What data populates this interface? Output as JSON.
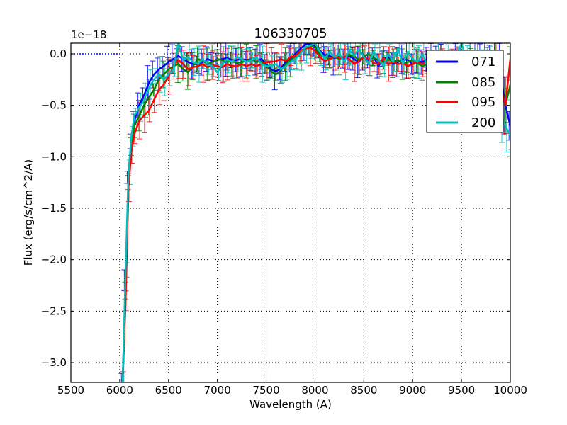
{
  "chart_data": {
    "type": "line",
    "title": "106330705",
    "xlabel": "Wavelength (A)",
    "ylabel": "Flux (erg/s/cm^2/A)",
    "y_offset_label": "1e−18",
    "xlim": [
      5500,
      10000
    ],
    "ylim": [
      -3.2,
      0.1
    ],
    "grid": true,
    "legend_position": "upper right",
    "x_ticks": [
      "5500",
      "6000",
      "6500",
      "7000",
      "7500",
      "8000",
      "8500",
      "9000",
      "9500",
      "10000"
    ],
    "y_ticks": [
      "0.0",
      "−0.5",
      "−1.0",
      "−1.5",
      "−2.0",
      "−2.5",
      "−3.0"
    ],
    "y_tick_values": [
      0.0,
      -0.5,
      -1.0,
      -1.5,
      -2.0,
      -2.5,
      -3.0
    ],
    "x": [
      6030,
      6060,
      6090,
      6120,
      6150,
      6200,
      6250,
      6300,
      6350,
      6400,
      6450,
      6500,
      6550,
      6600,
      6650,
      6700,
      6750,
      6800,
      6850,
      6900,
      6950,
      7000,
      7050,
      7100,
      7150,
      7200,
      7250,
      7300,
      7350,
      7400,
      7450,
      7500,
      7550,
      7600,
      7650,
      7700,
      7750,
      7800,
      7850,
      7900,
      7950,
      8000,
      8050,
      8100,
      8150,
      8200,
      8250,
      8300,
      8350,
      8400,
      8450,
      8500,
      8550,
      8600,
      8650,
      8700,
      8750,
      8800,
      8850,
      8900,
      8950,
      9000,
      9050,
      9100,
      9150,
      9200,
      9250,
      9300,
      9350,
      9400,
      9450,
      9500,
      9550,
      9600,
      9650,
      9700,
      9750,
      9800,
      9850,
      9900,
      9950,
      10000
    ],
    "series": [
      {
        "name": "071",
        "color": "#0000ff",
        "values": [
          -3.2,
          -2.2,
          -1.2,
          -0.85,
          -0.65,
          -0.5,
          -0.4,
          -0.28,
          -0.2,
          -0.15,
          -0.12,
          -0.08,
          -0.05,
          -0.02,
          -0.05,
          -0.08,
          -0.1,
          -0.1,
          -0.08,
          -0.05,
          -0.07,
          -0.06,
          -0.05,
          -0.04,
          -0.06,
          -0.06,
          -0.05,
          -0.06,
          -0.05,
          -0.08,
          -0.05,
          -0.1,
          -0.15,
          -0.17,
          -0.14,
          -0.08,
          -0.05,
          0.0,
          0.05,
          0.09,
          0.1,
          0.08,
          0.03,
          -0.01,
          -0.02,
          -0.04,
          -0.03,
          -0.05,
          -0.02,
          -0.05,
          -0.08,
          -0.02,
          -0.06,
          -0.03,
          -0.12,
          -0.05,
          -0.03,
          -0.1,
          -0.08,
          -0.05,
          -0.06,
          -0.1,
          -0.07,
          -0.08,
          -0.05,
          -0.06,
          -0.04,
          -0.02,
          -0.06,
          -0.08,
          -0.05,
          -0.02,
          -0.06,
          -0.05,
          -0.06,
          -0.08,
          -0.05,
          -0.08,
          -0.1,
          -0.2,
          -0.5,
          -0.7
        ]
      },
      {
        "name": "085",
        "color": "#008000",
        "values": [
          -3.2,
          -2.3,
          -1.25,
          -0.9,
          -0.7,
          -0.6,
          -0.5,
          -0.42,
          -0.35,
          -0.25,
          -0.2,
          -0.15,
          -0.12,
          -0.1,
          -0.15,
          -0.18,
          -0.12,
          -0.05,
          -0.07,
          -0.1,
          -0.08,
          -0.05,
          -0.06,
          -0.08,
          -0.07,
          -0.09,
          -0.08,
          -0.07,
          -0.05,
          -0.08,
          -0.07,
          -0.12,
          -0.17,
          -0.2,
          -0.16,
          -0.1,
          -0.06,
          -0.02,
          0.02,
          0.06,
          0.08,
          0.06,
          -0.01,
          -0.03,
          -0.05,
          -0.03,
          -0.05,
          -0.03,
          -0.01,
          -0.02,
          -0.06,
          -0.03,
          0.0,
          -0.04,
          -0.06,
          -0.08,
          -0.05,
          -0.08,
          -0.06,
          -0.1,
          -0.08,
          -0.06,
          -0.09,
          -0.12,
          -0.1,
          -0.08,
          -0.1,
          -0.08,
          -0.06,
          -0.09,
          -0.08,
          -0.06,
          -0.1,
          -0.08,
          -0.1,
          -0.08,
          -0.12,
          -0.1,
          -0.15,
          -0.35,
          -0.5,
          -0.3
        ]
      },
      {
        "name": "095",
        "color": "#ff0000",
        "values": [
          -3.2,
          -2.4,
          -1.3,
          -0.95,
          -0.78,
          -0.65,
          -0.6,
          -0.55,
          -0.45,
          -0.35,
          -0.3,
          -0.22,
          -0.12,
          -0.06,
          -0.1,
          -0.15,
          -0.13,
          -0.12,
          -0.1,
          -0.13,
          -0.11,
          -0.12,
          -0.13,
          -0.1,
          -0.12,
          -0.12,
          -0.1,
          -0.12,
          -0.1,
          -0.12,
          -0.1,
          -0.08,
          -0.08,
          -0.07,
          -0.05,
          -0.07,
          -0.03,
          -0.02,
          0.03,
          0.05,
          0.06,
          0.03,
          -0.03,
          -0.07,
          -0.05,
          -0.02,
          -0.04,
          -0.03,
          -0.05,
          -0.1,
          -0.07,
          -0.03,
          -0.05,
          -0.09,
          -0.1,
          -0.04,
          -0.1,
          -0.08,
          -0.1,
          -0.09,
          -0.12,
          -0.1,
          -0.08,
          -0.1,
          -0.07,
          -0.09,
          -0.06,
          -0.1,
          -0.12,
          -0.08,
          -0.1,
          -0.08,
          -0.09,
          -0.12,
          -0.1,
          -0.1,
          -0.12,
          -0.15,
          -0.1,
          -0.3,
          -0.5,
          -0.05
        ]
      },
      {
        "name": "200",
        "color": "#00bfbf",
        "values": [
          -3.2,
          -2.1,
          -1.15,
          -0.8,
          -0.6,
          -0.52,
          -0.45,
          -0.33,
          -0.25,
          -0.2,
          -0.25,
          -0.2,
          -0.15,
          0.1,
          -0.06,
          -0.03,
          -0.08,
          -0.1,
          -0.05,
          -0.1,
          -0.12,
          -0.18,
          -0.1,
          -0.05,
          -0.08,
          -0.03,
          -0.05,
          -0.08,
          -0.06,
          -0.03,
          -0.1,
          -0.12,
          -0.12,
          -0.1,
          -0.15,
          -0.12,
          -0.08,
          -0.05,
          0.0,
          0.06,
          0.08,
          0.1,
          0.02,
          -0.05,
          0.02,
          -0.03,
          0.0,
          -0.08,
          0.04,
          -0.02,
          0.05,
          -0.03,
          -0.1,
          0.02,
          -0.05,
          -0.12,
          0.0,
          -0.08,
          0.05,
          -0.1,
          0.02,
          -0.05,
          -0.08,
          0.0,
          -0.12,
          -0.05,
          0.03,
          -0.06,
          -0.03,
          -0.08,
          -0.02,
          0.1,
          -0.05,
          -0.08,
          -0.02,
          -0.1,
          -0.06,
          -0.12,
          -0.2,
          -0.6,
          -0.7,
          -0.8
        ]
      }
    ],
    "zero_line": {
      "color": "#0000ff",
      "style": "dotted",
      "x_range": [
        5500,
        6000
      ],
      "y": 0.0
    }
  },
  "legend": {
    "entries": [
      {
        "label": "071",
        "color": "#0000ff"
      },
      {
        "label": "085",
        "color": "#008000"
      },
      {
        "label": "095",
        "color": "#ff0000"
      },
      {
        "label": "200",
        "color": "#00bfbf"
      }
    ]
  }
}
